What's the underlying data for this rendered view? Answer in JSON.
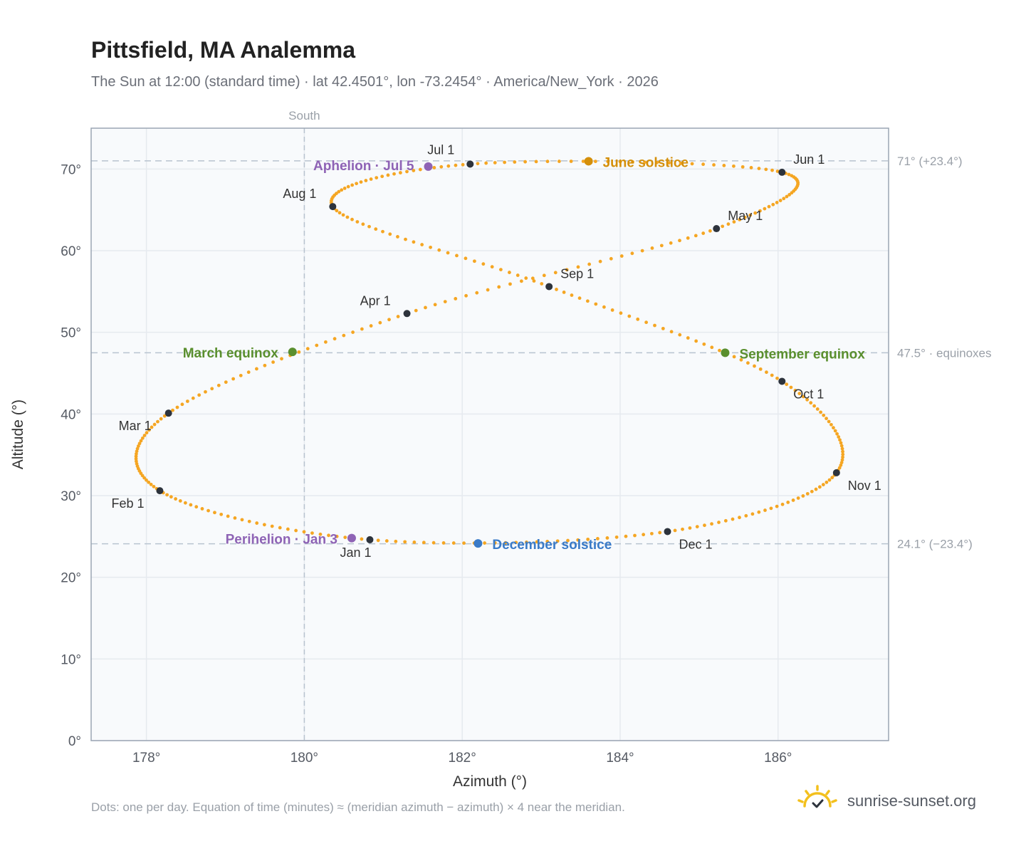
{
  "header": {
    "title": "Pittsfield, MA Analemma",
    "subtitle": "The Sun at 12:00 (standard time) · lat 42.4501°, lon -73.2454° · America/New_York · 2026"
  },
  "footer": {
    "note": "Dots: one per day. Equation of time (minutes) ≈ (meridian azimuth − azimuth) × 4 near the meridian.",
    "brand": "sunrise-sunset.org"
  },
  "colors": {
    "curve": "#f5a623",
    "month_dot": "#2d333c",
    "june_solstice": "#d48f0a",
    "december_solstice": "#3a7bc8",
    "equinox": "#5a8f2e",
    "apsis": "#8e63b5",
    "guide": "#b8c3cf",
    "plot_bg": "#f8fafc",
    "plot_border": "#9aa5b3",
    "grid": "#e6eaef"
  },
  "chart_data": {
    "type": "scatter",
    "xlabel": "Azimuth (°)",
    "ylabel": "Altitude (°)",
    "xlim": [
      177.3,
      187.4
    ],
    "ylim": [
      0,
      75
    ],
    "xticks": [
      {
        "value": 178,
        "label": "178°"
      },
      {
        "value": 180,
        "label": "180°"
      },
      {
        "value": 182,
        "label": "182°"
      },
      {
        "value": 184,
        "label": "184°"
      },
      {
        "value": 186,
        "label": "186°"
      }
    ],
    "yticks": [
      {
        "value": 0,
        "label": "0°"
      },
      {
        "value": 10,
        "label": "10°"
      },
      {
        "value": 20,
        "label": "20°"
      },
      {
        "value": 30,
        "label": "30°"
      },
      {
        "value": 40,
        "label": "40°"
      },
      {
        "value": 50,
        "label": "50°"
      },
      {
        "value": 60,
        "label": "60°"
      },
      {
        "value": 70,
        "label": "70°"
      }
    ],
    "grid": true,
    "south_line": {
      "value": 180,
      "label": "South"
    },
    "reference_lines": [
      {
        "value": 71.0,
        "label": "71° (+23.4°)"
      },
      {
        "value": 47.5,
        "label": "47.5° · equinoxes"
      },
      {
        "value": 24.1,
        "label": "24.1° (−23.4°)"
      }
    ],
    "monthly_points": [
      {
        "label": "Jan 1",
        "azimuth": 180.83,
        "altitude": 24.6
      },
      {
        "label": "Feb 1",
        "azimuth": 178.17,
        "altitude": 30.6
      },
      {
        "label": "Mar 1",
        "azimuth": 178.28,
        "altitude": 40.1
      },
      {
        "label": "Apr 1",
        "azimuth": 181.3,
        "altitude": 52.3
      },
      {
        "label": "May 1",
        "azimuth": 185.22,
        "altitude": 62.7
      },
      {
        "label": "Jun 1",
        "azimuth": 186.05,
        "altitude": 69.6
      },
      {
        "label": "Jul 1",
        "azimuth": 182.1,
        "altitude": 70.6
      },
      {
        "label": "Aug 1",
        "azimuth": 180.36,
        "altitude": 65.4
      },
      {
        "label": "Sep 1",
        "azimuth": 183.1,
        "altitude": 55.6
      },
      {
        "label": "Oct 1",
        "azimuth": 186.05,
        "altitude": 44.0
      },
      {
        "label": "Nov 1",
        "azimuth": 186.74,
        "altitude": 32.8
      },
      {
        "label": "Dec 1",
        "azimuth": 184.6,
        "altitude": 25.6
      }
    ],
    "events": [
      {
        "label": "June solstice",
        "azimuth": 183.6,
        "altitude": 70.95,
        "kind": "june_solstice"
      },
      {
        "label": "December solstice",
        "azimuth": 182.2,
        "altitude": 24.15,
        "kind": "december_solstice"
      },
      {
        "label": "March equinox",
        "azimuth": 179.85,
        "altitude": 47.6,
        "kind": "equinox"
      },
      {
        "label": "September equinox",
        "azimuth": 185.33,
        "altitude": 47.5,
        "kind": "equinox"
      },
      {
        "label": "Aphelion · Jul 5",
        "azimuth": 181.57,
        "altitude": 70.3,
        "kind": "apsis"
      },
      {
        "label": "Perihelion · Jan 3",
        "azimuth": 180.6,
        "altitude": 24.8,
        "kind": "apsis"
      }
    ]
  }
}
